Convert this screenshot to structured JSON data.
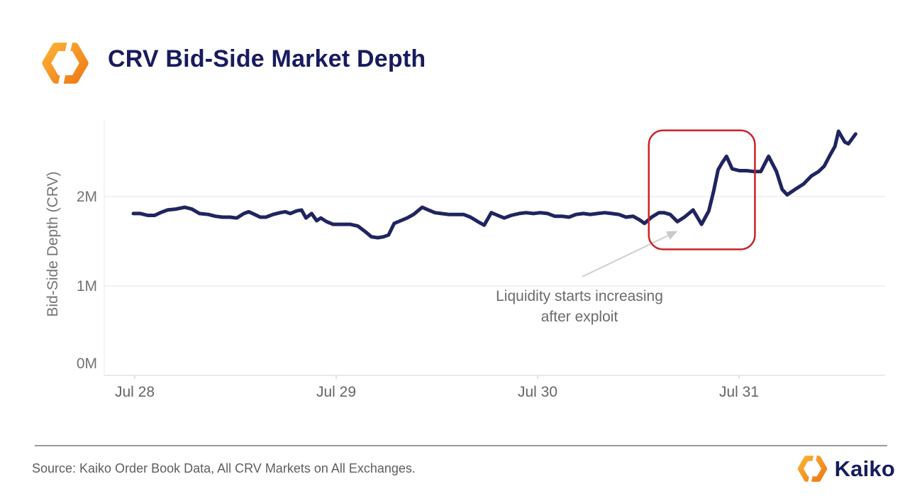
{
  "header": {
    "title": "CRV Bid-Side Market Depth"
  },
  "colors": {
    "navy_title": "#181b5e",
    "line": "#20245f",
    "grid": "#ededed",
    "axis_base": "#e3e3e3",
    "tick_label": "#666666",
    "y_tick_label": "#737373",
    "annotation_red": "#cb2229",
    "arrow_gray": "#c9c9c9",
    "logo_orange_light": "#FBB034",
    "logo_orange_dark": "#EF7B17"
  },
  "chart_data": {
    "type": "line",
    "title": "CRV Bid-Side Market Depth",
    "xlabel": "",
    "ylabel": "Bid-Side Depth (CRV)",
    "x_unit": "days since Jul 28 00:00",
    "grid": "horizontal",
    "legend": "none",
    "ylim": [
      0,
      2.85
    ],
    "xlim": [
      -0.05,
      3.65
    ],
    "x_ticks": [
      {
        "t": 0,
        "label": "Jul 28"
      },
      {
        "t": 1,
        "label": "Jul 29"
      },
      {
        "t": 2,
        "label": "Jul 30"
      },
      {
        "t": 3,
        "label": "Jul 31"
      }
    ],
    "y_ticks": [
      {
        "v": 0,
        "label": "0M"
      },
      {
        "v": 1,
        "label": "1M"
      },
      {
        "v": 2,
        "label": "2M"
      }
    ],
    "series": [
      {
        "name": "CRV bid-side market depth (millions of CRV)",
        "points": [
          [
            -0.007,
            1.81
          ],
          [
            0.028,
            1.81
          ],
          [
            0.064,
            1.79
          ],
          [
            0.099,
            1.79
          ],
          [
            0.127,
            1.82
          ],
          [
            0.163,
            1.85
          ],
          [
            0.205,
            1.86
          ],
          [
            0.248,
            1.88
          ],
          [
            0.283,
            1.86
          ],
          [
            0.322,
            1.81
          ],
          [
            0.365,
            1.8
          ],
          [
            0.4,
            1.78
          ],
          [
            0.435,
            1.77
          ],
          [
            0.471,
            1.77
          ],
          [
            0.506,
            1.76
          ],
          [
            0.542,
            1.81
          ],
          [
            0.566,
            1.83
          ],
          [
            0.595,
            1.8
          ],
          [
            0.623,
            1.77
          ],
          [
            0.651,
            1.77
          ],
          [
            0.687,
            1.8
          ],
          [
            0.722,
            1.82
          ],
          [
            0.747,
            1.83
          ],
          [
            0.772,
            1.81
          ],
          [
            0.804,
            1.84
          ],
          [
            0.828,
            1.85
          ],
          [
            0.85,
            1.76
          ],
          [
            0.878,
            1.81
          ],
          [
            0.903,
            1.73
          ],
          [
            0.924,
            1.76
          ],
          [
            0.952,
            1.72
          ],
          [
            0.984,
            1.69
          ],
          [
            1.027,
            1.69
          ],
          [
            1.069,
            1.69
          ],
          [
            1.108,
            1.67
          ],
          [
            1.143,
            1.61
          ],
          [
            1.175,
            1.55
          ],
          [
            1.207,
            1.54
          ],
          [
            1.235,
            1.55
          ],
          [
            1.26,
            1.57
          ],
          [
            1.288,
            1.7
          ],
          [
            1.32,
            1.73
          ],
          [
            1.352,
            1.76
          ],
          [
            1.384,
            1.8
          ],
          [
            1.427,
            1.88
          ],
          [
            1.458,
            1.85
          ],
          [
            1.49,
            1.82
          ],
          [
            1.522,
            1.81
          ],
          [
            1.558,
            1.8
          ],
          [
            1.596,
            1.8
          ],
          [
            1.632,
            1.8
          ],
          [
            1.667,
            1.77
          ],
          [
            1.703,
            1.72
          ],
          [
            1.735,
            1.68
          ],
          [
            1.77,
            1.82
          ],
          [
            1.802,
            1.79
          ],
          [
            1.834,
            1.76
          ],
          [
            1.869,
            1.79
          ],
          [
            1.908,
            1.81
          ],
          [
            1.943,
            1.82
          ],
          [
            1.979,
            1.81
          ],
          [
            2.014,
            1.82
          ],
          [
            2.05,
            1.81
          ],
          [
            2.085,
            1.78
          ],
          [
            2.12,
            1.78
          ],
          [
            2.156,
            1.77
          ],
          [
            2.191,
            1.8
          ],
          [
            2.227,
            1.81
          ],
          [
            2.262,
            1.8
          ],
          [
            2.297,
            1.81
          ],
          [
            2.333,
            1.82
          ],
          [
            2.368,
            1.81
          ],
          [
            2.403,
            1.8
          ],
          [
            2.439,
            1.77
          ],
          [
            2.474,
            1.78
          ],
          [
            2.506,
            1.74
          ],
          [
            2.531,
            1.7
          ],
          [
            2.566,
            1.77
          ],
          [
            2.602,
            1.82
          ],
          [
            2.627,
            1.82
          ],
          [
            2.658,
            1.8
          ],
          [
            2.694,
            1.72
          ],
          [
            2.729,
            1.77
          ],
          [
            2.772,
            1.85
          ],
          [
            2.814,
            1.69
          ],
          [
            2.85,
            1.84
          ],
          [
            2.874,
            2.06
          ],
          [
            2.896,
            2.3
          ],
          [
            2.917,
            2.38
          ],
          [
            2.938,
            2.45
          ],
          [
            2.966,
            2.31
          ],
          [
            3.002,
            2.29
          ],
          [
            3.037,
            2.29
          ],
          [
            3.073,
            2.28
          ],
          [
            3.108,
            2.28
          ],
          [
            3.147,
            2.45
          ],
          [
            3.186,
            2.28
          ],
          [
            3.214,
            2.08
          ],
          [
            3.239,
            2.02
          ],
          [
            3.278,
            2.08
          ],
          [
            3.32,
            2.14
          ],
          [
            3.359,
            2.23
          ],
          [
            3.395,
            2.28
          ],
          [
            3.423,
            2.34
          ],
          [
            3.451,
            2.46
          ],
          [
            3.476,
            2.56
          ],
          [
            3.494,
            2.73
          ],
          [
            3.525,
            2.61
          ],
          [
            3.543,
            2.59
          ],
          [
            3.579,
            2.7
          ]
        ]
      }
    ],
    "annotations": {
      "box": {
        "t0": 2.552,
        "t1": 3.079,
        "v0": 1.41,
        "v1": 2.74
      },
      "arrow": {
        "from_t": 2.223,
        "from_v": 1.105,
        "to_t": 2.695,
        "to_v": 1.615
      },
      "label": {
        "line1": "Liquidity starts increasing",
        "line2": "after exploit"
      }
    }
  },
  "footer": {
    "source": "Source: Kaiko Order Book Data, All CRV Markets on All Exchanges.",
    "brand": "Kaiko"
  }
}
